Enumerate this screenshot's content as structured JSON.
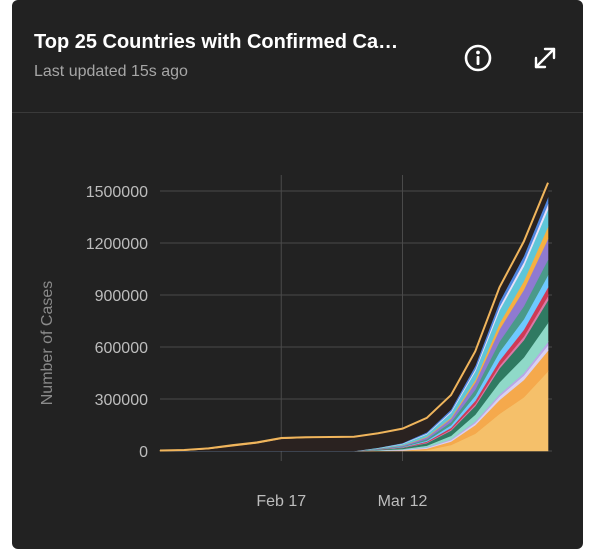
{
  "card": {
    "title": "Top 25 Countries with Confirmed Ca…",
    "subtitle": "Last updated 15s ago",
    "info_icon": "info-circle-icon",
    "expand_icon": "expand-arrows-icon"
  },
  "chart_data": {
    "type": "area",
    "stacked": true,
    "title": "",
    "xlabel": "",
    "ylabel": "Number of Cases",
    "ylim": [
      0,
      1500000
    ],
    "yticks": [
      "0",
      "300000",
      "600000",
      "900000",
      "1200000",
      "1500000"
    ],
    "x": [
      "Jan 22",
      "Jan 27",
      "Feb 1",
      "Feb 6",
      "Feb 11",
      "Feb 17",
      "Feb 22",
      "Feb 27",
      "Mar 3",
      "Mar 7",
      "Mar 12",
      "Mar 17",
      "Mar 22",
      "Mar 27",
      "Apr 1",
      "Apr 4",
      "Apr 8"
    ],
    "xticks": [
      "Feb 17",
      "Mar 12"
    ],
    "grid": true,
    "background": "#222222",
    "series": [
      {
        "color": "#f5c06a",
        "values": [
          0,
          0,
          0,
          0,
          0,
          0,
          0,
          0,
          0,
          1000,
          1500,
          6000,
          35000,
          100000,
          215000,
          310000,
          460000
        ]
      },
      {
        "color": "#f5a94c",
        "values": [
          0,
          0,
          0,
          0,
          0,
          0,
          0,
          0,
          0,
          500,
          2000,
          8000,
          20000,
          50000,
          80000,
          100000,
          120000
        ]
      },
      {
        "color": "#d9d1f2",
        "values": [
          0,
          0,
          0,
          0,
          0,
          0,
          0,
          0,
          0,
          1000,
          3000,
          5000,
          8000,
          12000,
          20000,
          25000,
          30000
        ]
      },
      {
        "color": "#b9a6e8",
        "values": [
          0,
          0,
          0,
          0,
          0,
          0,
          0,
          0,
          0,
          500,
          1500,
          3000,
          5000,
          8000,
          12000,
          15000,
          20000
        ]
      },
      {
        "color": "#8fd9c8",
        "values": [
          0,
          0,
          0,
          0,
          0,
          0,
          0,
          0,
          0,
          2000,
          4000,
          9000,
          20000,
          40000,
          70000,
          90000,
          110000
        ]
      },
      {
        "color": "#2f7a62",
        "values": [
          0,
          0,
          0,
          0,
          0,
          0,
          0,
          0,
          0,
          3000,
          6000,
          15000,
          30000,
          50000,
          80000,
          100000,
          130000
        ]
      },
      {
        "color": "#d97aa8",
        "values": [
          0,
          0,
          0,
          0,
          0,
          0,
          0,
          0,
          0,
          500,
          1000,
          3000,
          6000,
          10000,
          15000,
          20000,
          25000
        ]
      },
      {
        "color": "#cf3a55",
        "values": [
          0,
          0,
          0,
          0,
          0,
          0,
          0,
          0,
          0,
          1000,
          2000,
          5000,
          10000,
          20000,
          30000,
          40000,
          50000
        ]
      },
      {
        "color": "#6ec9ff",
        "values": [
          0,
          0,
          0,
          0,
          0,
          0,
          0,
          0,
          0,
          1000,
          2000,
          6000,
          15000,
          30000,
          50000,
          60000,
          70000
        ]
      },
      {
        "color": "#4a9a8a",
        "values": [
          0,
          0,
          0,
          0,
          0,
          0,
          0,
          0,
          0,
          2000,
          4000,
          9000,
          18000,
          35000,
          60000,
          75000,
          90000
        ]
      },
      {
        "color": "#8f7ad1",
        "values": [
          0,
          0,
          0,
          0,
          0,
          0,
          0,
          0,
          0,
          2000,
          5000,
          10000,
          20000,
          40000,
          70000,
          95000,
          120000
        ]
      },
      {
        "color": "#f5b041",
        "values": [
          0,
          0,
          0,
          0,
          0,
          0,
          0,
          0,
          0,
          500,
          1500,
          3000,
          6000,
          15000,
          35000,
          50000,
          70000
        ]
      },
      {
        "color": "#5ec6d8",
        "values": [
          0,
          0,
          0,
          0,
          0,
          0,
          0,
          0,
          0,
          3000,
          8000,
          15000,
          28000,
          50000,
          75000,
          85000,
          100000
        ]
      },
      {
        "color": "#e8e0f8",
        "values": [
          0,
          0,
          0,
          0,
          0,
          0,
          0,
          0,
          0,
          1000,
          2000,
          4000,
          7000,
          12000,
          20000,
          25000,
          30000
        ]
      },
      {
        "color": "#4f86e0",
        "values": [
          0,
          0,
          0,
          0,
          0,
          0,
          0,
          0,
          0,
          1000,
          3000,
          7000,
          12000,
          20000,
          30000,
          35000,
          40000
        ]
      },
      {
        "color": "#2a2220",
        "values": [
          550,
          2800,
          11000,
          28000,
          44000,
          70500,
          76000,
          78000,
          80000,
          80600,
          80800,
          81000,
          81300,
          81400,
          81500,
          81600,
          81800
        ]
      },
      {
        "color": "#f0b55c",
        "values": [
          2500,
          3000,
          4500,
          6000,
          5500,
          4500,
          3500,
          2500,
          2000,
          1800,
          1700,
          1600,
          1500,
          1400,
          1300,
          1200,
          1100
        ]
      }
    ]
  }
}
